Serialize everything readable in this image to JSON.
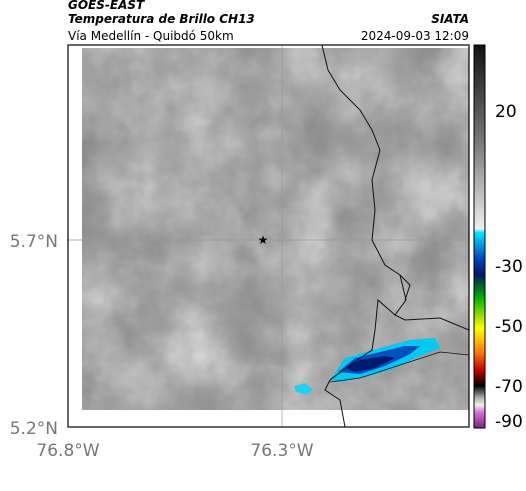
{
  "header": {
    "satellite": "GOES-EAST",
    "title": "Temperatura de Brillo CH13",
    "subtitle": "Vía Medellín - Quibdó 50km",
    "source": "SIATA",
    "datetime": "2024-09-03 12:09"
  },
  "map": {
    "lat_ticks": [
      "5.7°N",
      "5.2°N"
    ],
    "lon_ticks": [
      "76.8°W",
      "76.3°W"
    ]
  },
  "colorbar": {
    "ticks": [
      "20",
      "-30",
      "-50",
      "-70",
      "-90"
    ]
  }
}
